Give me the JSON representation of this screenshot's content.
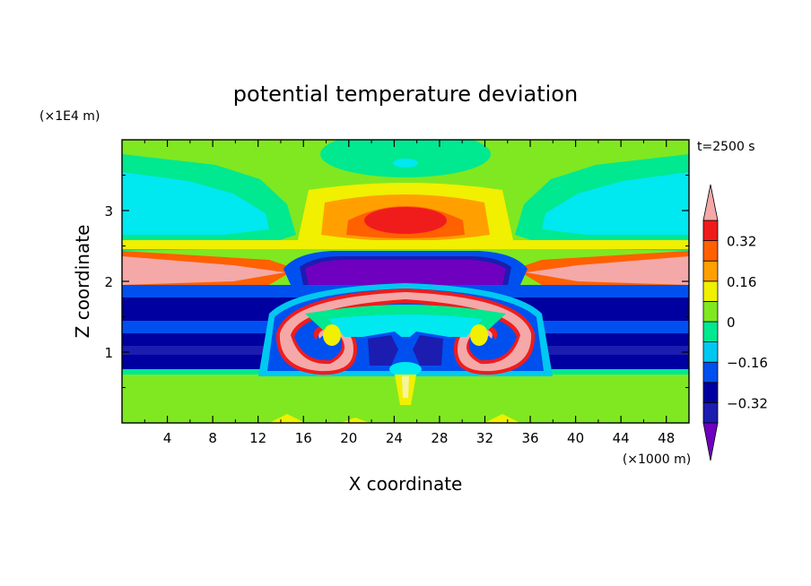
{
  "chart_data": {
    "type": "heatmap",
    "title": "potential temperature deviation",
    "xlabel": "X coordinate",
    "ylabel": "Z coordinate",
    "x_unit": "(×1000 m)",
    "y_unit": "(×1E4 m)",
    "time_label": "t=2500 s",
    "x_ticks": [
      "4",
      "8",
      "12",
      "16",
      "20",
      "24",
      "28",
      "32",
      "36",
      "40",
      "44",
      "48"
    ],
    "x_tick_values": [
      4,
      8,
      12,
      16,
      20,
      24,
      28,
      32,
      36,
      40,
      44,
      48
    ],
    "y_ticks": [
      "1",
      "2",
      "3"
    ],
    "y_tick_values": [
      1,
      2,
      3
    ],
    "xlim": [
      0,
      50
    ],
    "ylim": [
      0,
      4
    ],
    "colorbar": {
      "labels": [
        "0.32",
        "0.16",
        "0",
        "−0.16",
        "−0.32"
      ],
      "label_values": [
        0.32,
        0.16,
        0,
        -0.16,
        -0.32
      ],
      "levels": [
        -0.48,
        -0.4,
        -0.32,
        -0.24,
        -0.16,
        -0.08,
        0,
        0.08,
        0.16,
        0.24,
        0.32,
        0.4,
        0.48
      ],
      "colors": [
        "#7000c0",
        "#1c1cb0",
        "#0000a0",
        "#0050f0",
        "#00c8f0",
        "#00e890",
        "#80e820",
        "#f0f000",
        "#ffa000",
        "#ff6000",
        "#f01c1c",
        "#f4a8a8"
      ],
      "extend": "both"
    },
    "colors": {
      "background_field": "#80e820",
      "pink_max": "#f4a8a8",
      "red": "#f01c1c",
      "dark_blue": "#0000a0",
      "blue": "#0050f0",
      "cyan": "#00e8f0",
      "sea_green": "#00e890",
      "yellow": "#f0f000",
      "purple": "#7000c0"
    }
  }
}
